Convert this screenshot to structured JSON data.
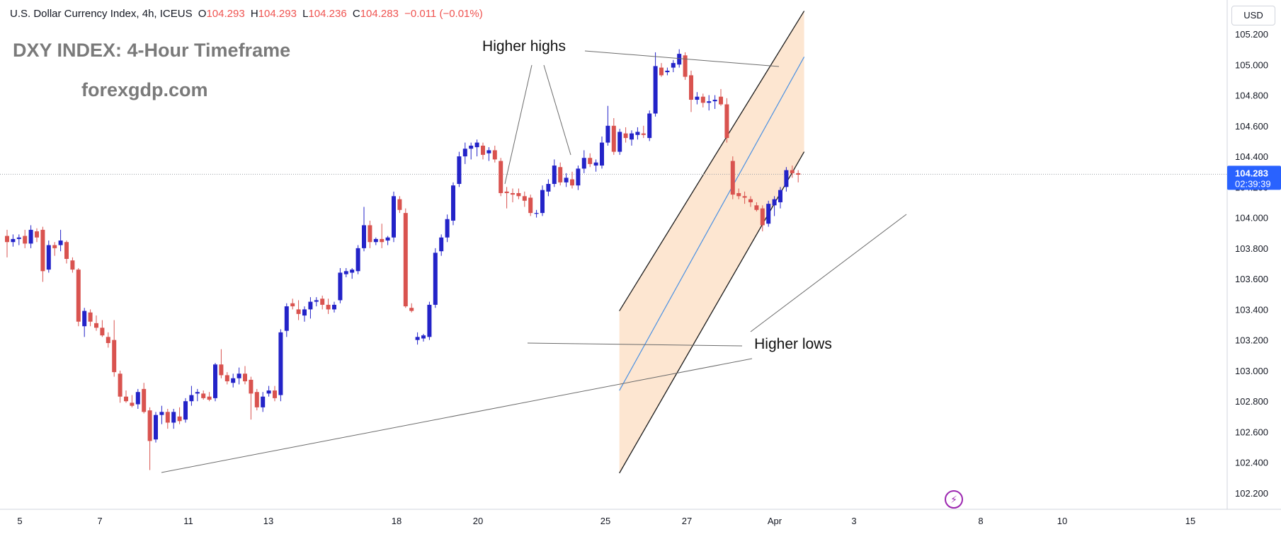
{
  "header": {
    "symbol_info": "U.S. Dollar Currency Index, 4h, ICEUS",
    "open_label": "O",
    "open": "104.293",
    "high_label": "H",
    "high": "104.293",
    "low_label": "L",
    "low": "104.236",
    "close_label": "C",
    "close": "104.283",
    "change": "−0.011 (−0.01%)"
  },
  "overlay": {
    "title": "DXY INDEX: 4-Hour Timeframe",
    "site": "forexgdp.com",
    "higher_highs": "Higher highs",
    "higher_lows": "Higher lows"
  },
  "price_axis": {
    "currency": "USD",
    "current_price": "104.283",
    "countdown": "02:39:39"
  },
  "colors": {
    "bull": "#2323c8",
    "bear": "#d9534f",
    "channel_fill": "#fde3cc",
    "channel_line": "#1a1a1a",
    "midline": "#4a90e2",
    "purple": "#9c27b0"
  },
  "icons": {
    "alert": "lightning-icon"
  },
  "chart_data": {
    "type": "candlestick",
    "title": "DXY INDEX: 4-Hour Timeframe",
    "y_ticks": [
      "105.200",
      "105.000",
      "104.800",
      "104.600",
      "104.400",
      "104.200",
      "104.000",
      "103.800",
      "103.600",
      "103.400",
      "103.200",
      "103.000",
      "102.800",
      "102.600",
      "102.400",
      "102.200"
    ],
    "x_ticks": [
      "5",
      "7",
      "11",
      "13",
      "18",
      "20",
      "25",
      "27",
      "Apr",
      "3",
      "8",
      "10",
      "15"
    ],
    "ylim": [
      102.12,
      105.35
    ],
    "current_price": 104.283,
    "grid": false,
    "candles": [
      [
        103.88,
        103.92,
        103.74,
        103.84
      ],
      [
        103.84,
        103.89,
        103.81,
        103.86
      ],
      [
        103.86,
        103.89,
        103.82,
        103.87
      ],
      [
        103.88,
        103.92,
        103.8,
        103.83
      ],
      [
        103.83,
        103.95,
        103.8,
        103.92
      ],
      [
        103.91,
        103.93,
        103.84,
        103.87
      ],
      [
        103.92,
        103.94,
        103.58,
        103.65
      ],
      [
        103.66,
        103.85,
        103.64,
        103.82
      ],
      [
        103.82,
        103.84,
        103.75,
        103.8
      ],
      [
        103.82,
        103.92,
        103.78,
        103.85
      ],
      [
        103.84,
        103.85,
        103.7,
        103.73
      ],
      [
        103.72,
        103.74,
        103.64,
        103.66
      ],
      [
        103.66,
        103.67,
        103.29,
        103.32
      ],
      [
        103.29,
        103.41,
        103.22,
        103.39
      ],
      [
        103.38,
        103.4,
        103.29,
        103.32
      ],
      [
        103.31,
        103.36,
        103.26,
        103.28
      ],
      [
        103.28,
        103.33,
        103.22,
        103.23
      ],
      [
        103.22,
        103.25,
        103.15,
        103.18
      ],
      [
        103.2,
        103.33,
        102.96,
        102.99
      ],
      [
        102.98,
        103.0,
        102.79,
        102.83
      ],
      [
        102.83,
        102.87,
        102.79,
        102.8
      ],
      [
        102.79,
        102.84,
        102.76,
        102.77
      ],
      [
        102.78,
        102.88,
        102.75,
        102.86
      ],
      [
        102.88,
        102.92,
        102.72,
        102.73
      ],
      [
        102.74,
        102.76,
        102.35,
        102.54
      ],
      [
        102.55,
        102.73,
        102.53,
        102.71
      ],
      [
        102.71,
        102.77,
        102.65,
        102.73
      ],
      [
        102.73,
        102.75,
        102.62,
        102.66
      ],
      [
        102.66,
        102.75,
        102.62,
        102.73
      ],
      [
        102.7,
        102.76,
        102.65,
        102.67
      ],
      [
        102.68,
        102.82,
        102.66,
        102.8
      ],
      [
        102.8,
        102.9,
        102.77,
        102.84
      ],
      [
        102.85,
        102.88,
        102.8,
        102.86
      ],
      [
        102.85,
        102.87,
        102.81,
        102.82
      ],
      [
        102.83,
        102.86,
        102.8,
        102.81
      ],
      [
        102.82,
        103.05,
        102.8,
        103.04
      ],
      [
        103.04,
        103.14,
        102.95,
        102.97
      ],
      [
        102.97,
        102.99,
        102.91,
        102.93
      ],
      [
        102.92,
        102.98,
        102.89,
        102.95
      ],
      [
        102.95,
        103.02,
        102.91,
        102.98
      ],
      [
        102.98,
        103.03,
        102.91,
        102.93
      ],
      [
        102.94,
        102.96,
        102.68,
        102.85
      ],
      [
        102.86,
        102.88,
        102.74,
        102.76
      ],
      [
        102.76,
        102.86,
        102.73,
        102.83
      ],
      [
        102.85,
        102.9,
        102.83,
        102.87
      ],
      [
        102.87,
        102.9,
        102.8,
        102.82
      ],
      [
        102.84,
        103.27,
        102.8,
        103.25
      ],
      [
        103.26,
        103.44,
        103.22,
        103.42
      ],
      [
        103.44,
        103.47,
        103.4,
        103.42
      ],
      [
        103.4,
        103.46,
        103.33,
        103.37
      ],
      [
        103.36,
        103.42,
        103.32,
        103.4
      ],
      [
        103.4,
        103.48,
        103.34,
        103.45
      ],
      [
        103.45,
        103.48,
        103.42,
        103.46
      ],
      [
        103.47,
        103.49,
        103.4,
        103.43
      ],
      [
        103.43,
        103.47,
        103.37,
        103.4
      ],
      [
        103.4,
        103.45,
        103.38,
        103.43
      ],
      [
        103.46,
        103.67,
        103.44,
        103.64
      ],
      [
        103.63,
        103.67,
        103.61,
        103.65
      ],
      [
        103.64,
        103.67,
        103.6,
        103.66
      ],
      [
        103.65,
        103.82,
        103.63,
        103.8
      ],
      [
        103.8,
        104.07,
        103.78,
        103.95
      ],
      [
        103.95,
        103.98,
        103.8,
        103.84
      ],
      [
        103.84,
        103.87,
        103.82,
        103.86
      ],
      [
        103.86,
        103.96,
        103.8,
        103.84
      ],
      [
        103.85,
        103.88,
        103.82,
        103.87
      ],
      [
        103.87,
        104.17,
        103.84,
        104.14
      ],
      [
        104.12,
        104.14,
        104.03,
        104.05
      ],
      [
        104.03,
        104.06,
        103.41,
        103.42
      ],
      [
        103.41,
        103.44,
        103.38,
        103.39
      ],
      [
        103.2,
        103.25,
        103.17,
        103.22
      ],
      [
        103.21,
        103.24,
        103.19,
        103.23
      ],
      [
        103.22,
        103.45,
        103.2,
        103.43
      ],
      [
        103.43,
        103.8,
        103.41,
        103.77
      ],
      [
        103.78,
        103.89,
        103.75,
        103.87
      ],
      [
        103.87,
        104.02,
        103.84,
        103.99
      ],
      [
        103.98,
        104.23,
        103.95,
        104.21
      ],
      [
        104.22,
        104.43,
        104.2,
        104.4
      ],
      [
        104.4,
        104.49,
        104.35,
        104.45
      ],
      [
        104.45,
        104.49,
        104.38,
        104.47
      ],
      [
        104.46,
        104.51,
        104.4,
        104.49
      ],
      [
        104.47,
        104.49,
        104.38,
        104.41
      ],
      [
        104.42,
        104.46,
        104.37,
        104.44
      ],
      [
        104.44,
        104.47,
        104.36,
        104.38
      ],
      [
        104.37,
        104.39,
        104.14,
        104.16
      ],
      [
        104.17,
        104.2,
        104.06,
        104.16
      ],
      [
        104.16,
        104.19,
        104.1,
        104.15
      ],
      [
        104.16,
        104.19,
        104.12,
        104.14
      ],
      [
        104.14,
        104.17,
        104.07,
        104.11
      ],
      [
        104.13,
        104.15,
        104.01,
        104.03
      ],
      [
        104.03,
        104.05,
        104.0,
        104.03
      ],
      [
        104.03,
        104.21,
        104.01,
        104.18
      ],
      [
        104.17,
        104.25,
        104.14,
        104.22
      ],
      [
        104.22,
        104.38,
        104.2,
        104.34
      ],
      [
        104.33,
        104.36,
        104.21,
        104.23
      ],
      [
        104.23,
        104.29,
        104.2,
        104.26
      ],
      [
        104.25,
        104.3,
        104.19,
        104.21
      ],
      [
        104.21,
        104.34,
        104.18,
        104.32
      ],
      [
        104.32,
        104.44,
        104.29,
        104.39
      ],
      [
        104.39,
        104.42,
        104.33,
        104.35
      ],
      [
        104.34,
        104.38,
        104.3,
        104.36
      ],
      [
        104.34,
        104.53,
        104.32,
        104.49
      ],
      [
        104.49,
        104.73,
        104.47,
        104.6
      ],
      [
        104.6,
        104.65,
        104.41,
        104.43
      ],
      [
        104.43,
        104.58,
        104.41,
        104.56
      ],
      [
        104.55,
        104.59,
        104.49,
        104.52
      ],
      [
        104.51,
        104.57,
        104.47,
        104.55
      ],
      [
        104.54,
        104.59,
        104.51,
        104.56
      ],
      [
        104.55,
        104.6,
        104.52,
        104.54
      ],
      [
        104.52,
        104.7,
        104.5,
        104.68
      ],
      [
        104.68,
        105.08,
        104.66,
        104.99
      ],
      [
        104.98,
        105.01,
        104.92,
        104.93
      ],
      [
        104.95,
        104.98,
        104.93,
        104.96
      ],
      [
        104.98,
        105.03,
        104.95,
        105.01
      ],
      [
        105.0,
        105.1,
        104.98,
        105.07
      ],
      [
        105.06,
        105.08,
        104.9,
        104.92
      ],
      [
        104.93,
        104.96,
        104.69,
        104.77
      ],
      [
        104.77,
        104.82,
        104.74,
        104.79
      ],
      [
        104.79,
        104.81,
        104.72,
        104.75
      ],
      [
        104.75,
        104.8,
        104.7,
        104.76
      ],
      [
        104.76,
        104.8,
        104.71,
        104.77
      ],
      [
        104.79,
        104.84,
        104.73,
        104.74
      ],
      [
        104.74,
        104.78,
        104.49,
        104.52
      ],
      [
        104.37,
        104.4,
        104.12,
        104.15
      ],
      [
        104.16,
        104.19,
        104.12,
        104.14
      ],
      [
        104.14,
        104.17,
        104.09,
        104.13
      ],
      [
        104.12,
        104.14,
        104.07,
        104.1
      ],
      [
        104.08,
        104.1,
        104.04,
        104.05
      ],
      [
        104.06,
        104.08,
        103.91,
        103.95
      ],
      [
        103.96,
        104.11,
        103.94,
        104.09
      ],
      [
        104.08,
        104.14,
        104.01,
        104.12
      ],
      [
        104.1,
        104.2,
        104.06,
        104.18
      ],
      [
        104.2,
        104.33,
        104.17,
        104.31
      ],
      [
        104.31,
        104.34,
        104.26,
        104.29
      ],
      [
        104.29,
        104.31,
        104.23,
        104.28
      ]
    ],
    "channel": {
      "upper": [
        [
          102.94,
          103.39
        ],
        [
          134,
          105.35
        ]
      ],
      "lower": [
        [
          102.94,
          102.33
        ],
        [
          134,
          104.43
        ]
      ],
      "mid": [
        [
          102.94,
          102.87
        ],
        [
          134,
          105.05
        ]
      ]
    },
    "annotations": [
      "Higher highs",
      "Higher lows"
    ]
  }
}
